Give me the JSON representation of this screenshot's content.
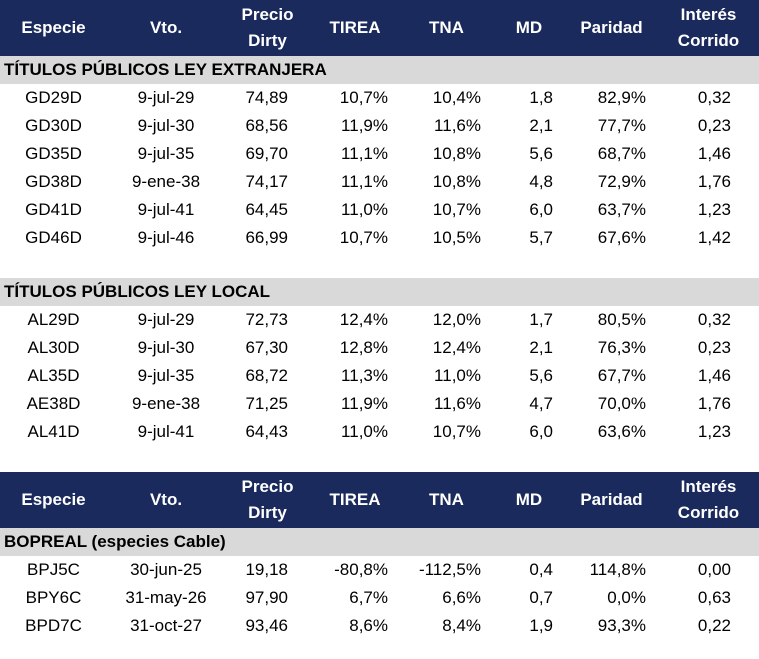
{
  "headers": [
    "Especie",
    "Vto.",
    "Precio Dirty",
    "TIREA",
    "TNA",
    "MD",
    "Paridad",
    "Interés Corrido"
  ],
  "header_lines": {
    "precio": [
      "Precio",
      "Dirty"
    ],
    "interes": [
      "Interés",
      "Corrido"
    ]
  },
  "sections": [
    {
      "title": "TÍTULOS PÚBLICOS LEY EXTRANJERA",
      "rows": [
        [
          "GD29D",
          "9-jul-29",
          "74,89",
          "10,7%",
          "10,4%",
          "1,8",
          "82,9%",
          "0,32"
        ],
        [
          "GD30D",
          "9-jul-30",
          "68,56",
          "11,9%",
          "11,6%",
          "2,1",
          "77,7%",
          "0,23"
        ],
        [
          "GD35D",
          "9-jul-35",
          "69,70",
          "11,1%",
          "10,8%",
          "5,6",
          "68,7%",
          "1,46"
        ],
        [
          "GD38D",
          "9-ene-38",
          "74,17",
          "11,1%",
          "10,8%",
          "4,8",
          "72,9%",
          "1,76"
        ],
        [
          "GD41D",
          "9-jul-41",
          "64,45",
          "11,0%",
          "10,7%",
          "6,0",
          "63,7%",
          "1,23"
        ],
        [
          "GD46D",
          "9-jul-46",
          "66,99",
          "10,7%",
          "10,5%",
          "5,7",
          "67,6%",
          "1,42"
        ]
      ]
    },
    {
      "title": "TÍTULOS PÚBLICOS LEY LOCAL",
      "rows": [
        [
          "AL29D",
          "9-jul-29",
          "72,73",
          "12,4%",
          "12,0%",
          "1,7",
          "80,5%",
          "0,32"
        ],
        [
          "AL30D",
          "9-jul-30",
          "67,30",
          "12,8%",
          "12,4%",
          "2,1",
          "76,3%",
          "0,23"
        ],
        [
          "AL35D",
          "9-jul-35",
          "68,72",
          "11,3%",
          "11,0%",
          "5,6",
          "67,7%",
          "1,46"
        ],
        [
          "AE38D",
          "9-ene-38",
          "71,25",
          "11,9%",
          "11,6%",
          "4,7",
          "70,0%",
          "1,76"
        ],
        [
          "AL41D",
          "9-jul-41",
          "64,43",
          "11,0%",
          "10,7%",
          "6,0",
          "63,6%",
          "1,23"
        ]
      ]
    },
    {
      "title": "BOPREAL (especies Cable)",
      "rows": [
        [
          "BPJ5C",
          "30-jun-25",
          "19,18",
          "-80,8%",
          "-112,5%",
          "0,4",
          "114,8%",
          "0,00"
        ],
        [
          "BPY6C",
          "31-may-26",
          "97,90",
          "6,7%",
          "6,6%",
          "0,7",
          "0,0%",
          "0,63"
        ],
        [
          "BPD7C",
          "31-oct-27",
          "93,46",
          "8,6%",
          "8,4%",
          "1,9",
          "93,3%",
          "0,22"
        ]
      ]
    }
  ]
}
